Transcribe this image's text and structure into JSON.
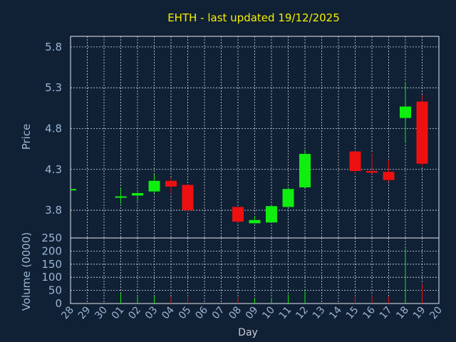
{
  "chart_data": {
    "type": "candlestick",
    "title": "EHTH - last updated 19/12/2025",
    "xlabel": "Day",
    "price_panel": {
      "ylabel": "Price",
      "y_ticks": [
        "3.8",
        "4.3",
        "4.8",
        "5.3",
        "5.8"
      ],
      "ylim": [
        3.46,
        5.93
      ]
    },
    "volume_panel": {
      "ylabel": "Volume (0000)",
      "y_ticks": [
        "0",
        "50",
        "100",
        "150",
        "200",
        "250"
      ],
      "ylim": [
        0,
        250
      ]
    },
    "grid": true,
    "days": [
      "28",
      "29",
      "30",
      "01",
      "02",
      "03",
      "04",
      "05",
      "06",
      "07",
      "08",
      "09",
      "10",
      "11",
      "12",
      "13",
      "14",
      "15",
      "16",
      "17",
      "18",
      "19",
      "20"
    ],
    "candles": [
      {
        "day": "28",
        "open": 4.06,
        "high": 4.06,
        "low": 4.06,
        "close": 4.06,
        "volume": 0
      },
      {
        "day": "01",
        "open": 3.96,
        "high": 4.07,
        "low": 3.88,
        "close": 3.97,
        "volume": 40
      },
      {
        "day": "02",
        "open": 3.98,
        "high": 4.02,
        "low": 3.91,
        "close": 4.01,
        "volume": 26
      },
      {
        "day": "03",
        "open": 4.03,
        "high": 4.24,
        "low": 4.01,
        "close": 4.16,
        "volume": 28
      },
      {
        "day": "04",
        "open": 4.16,
        "high": 4.2,
        "low": 4.0,
        "close": 4.09,
        "volume": 27
      },
      {
        "day": "05",
        "open": 4.11,
        "high": 4.11,
        "low": 3.78,
        "close": 3.8,
        "volume": 30
      },
      {
        "day": "08",
        "open": 3.84,
        "high": 3.84,
        "low": 3.65,
        "close": 3.66,
        "volume": 24
      },
      {
        "day": "09",
        "open": 3.64,
        "high": 3.73,
        "low": 3.64,
        "close": 3.68,
        "volume": 20
      },
      {
        "day": "10",
        "open": 3.65,
        "high": 3.86,
        "low": 3.65,
        "close": 3.85,
        "volume": 22
      },
      {
        "day": "11",
        "open": 3.84,
        "high": 4.07,
        "low": 3.84,
        "close": 4.06,
        "volume": 35
      },
      {
        "day": "12",
        "open": 4.08,
        "high": 4.54,
        "low": 4.08,
        "close": 4.49,
        "volume": 48
      },
      {
        "day": "15",
        "open": 4.52,
        "high": 4.54,
        "low": 4.24,
        "close": 4.28,
        "volume": 30
      },
      {
        "day": "16",
        "open": 4.28,
        "high": 4.5,
        "low": 4.25,
        "close": 4.26,
        "volume": 32
      },
      {
        "day": "17",
        "open": 4.27,
        "high": 4.42,
        "low": 4.15,
        "close": 4.17,
        "volume": 25
      },
      {
        "day": "18",
        "open": 4.93,
        "high": 5.36,
        "low": 4.62,
        "close": 5.07,
        "volume": 210
      },
      {
        "day": "19",
        "open": 5.13,
        "high": 5.21,
        "low": 4.34,
        "close": 4.37,
        "volume": 75
      }
    ],
    "colors": {
      "up": "#10ee10",
      "down": "#ee1010",
      "background": "#102035",
      "grid": "#d6dce3",
      "axis_text": "#9ab6d4",
      "title_text": "#f6f000"
    }
  }
}
